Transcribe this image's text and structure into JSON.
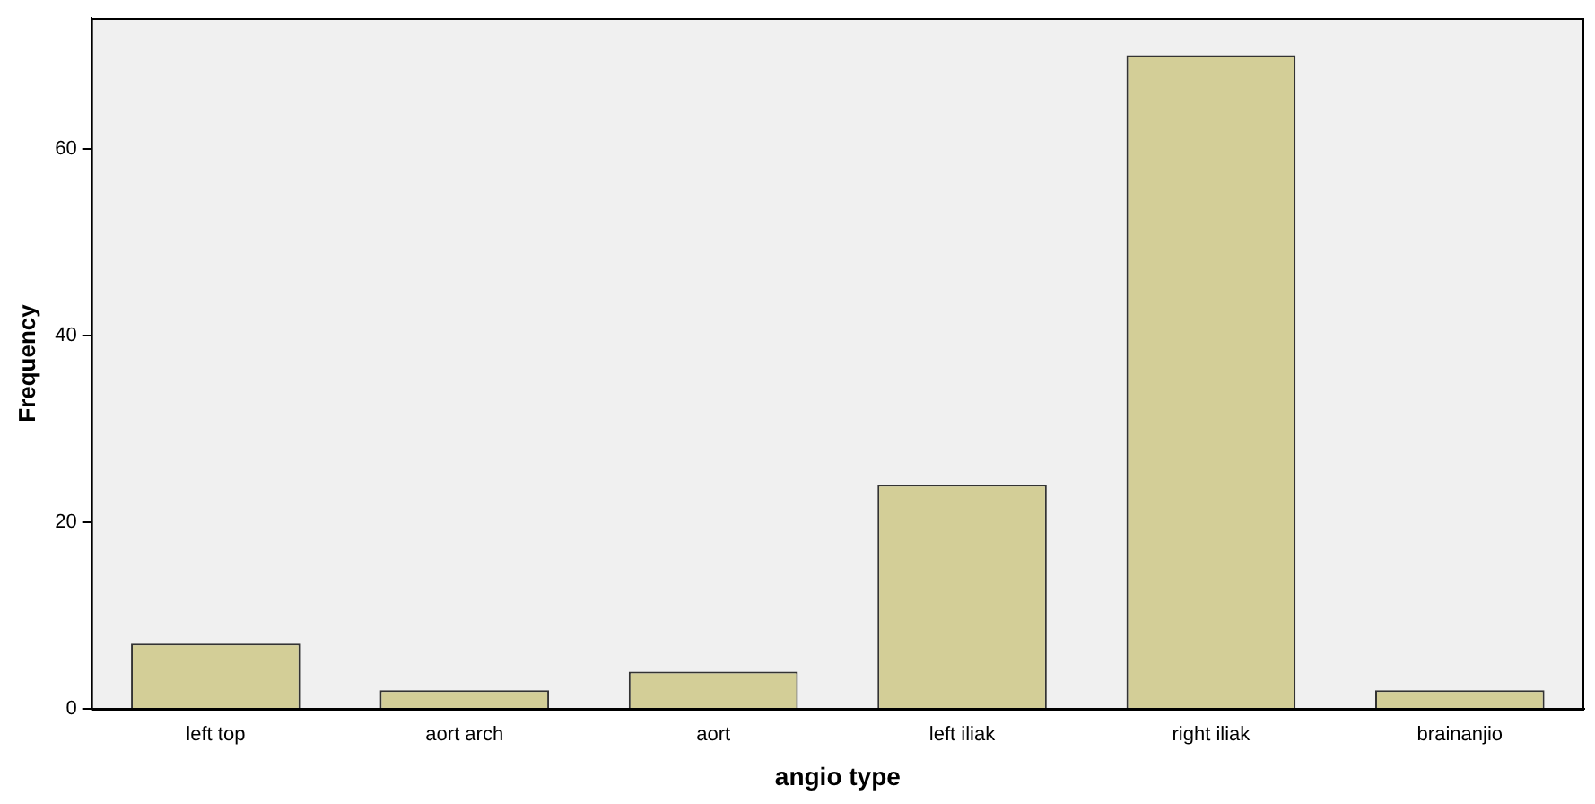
{
  "chart_data": {
    "type": "bar",
    "xlabel": "angio type",
    "ylabel": "Frequency",
    "categories": [
      "left top",
      "aort arch",
      "aort",
      "left iliak",
      "right iliak",
      "brainanjio"
    ],
    "values": [
      7,
      2,
      4,
      24,
      70,
      2
    ],
    "color": "#d3ce97",
    "ylim": [
      0,
      74
    ],
    "yticks": [
      0,
      20,
      40,
      60
    ],
    "grid": false
  }
}
